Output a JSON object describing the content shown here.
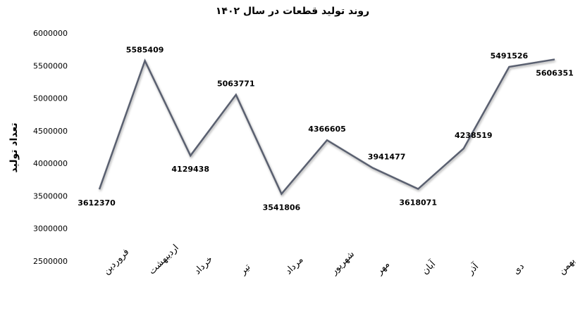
{
  "chart_data": {
    "type": "line",
    "title": "روند تولید قطعات در سال ۱۴۰۲",
    "y_label": "تعداد تولید",
    "categories": [
      "فروردین",
      "اردیبهشت",
      "خرداد",
      "تیر",
      "مرداد",
      "شهریور",
      "مهر",
      "آبان",
      "آذر",
      "دی",
      "بهمن"
    ],
    "values": [
      3612370,
      5585409,
      4129438,
      5063771,
      3541806,
      4366605,
      3941477,
      3618071,
      4238519,
      5491526,
      5606351
    ],
    "color": "#5a6070",
    "ylim": [
      2500000,
      6000000
    ],
    "yticks": [
      2500000,
      3000000,
      3500000,
      4000000,
      4500000,
      5000000,
      5500000,
      6000000
    ],
    "grid": false
  }
}
